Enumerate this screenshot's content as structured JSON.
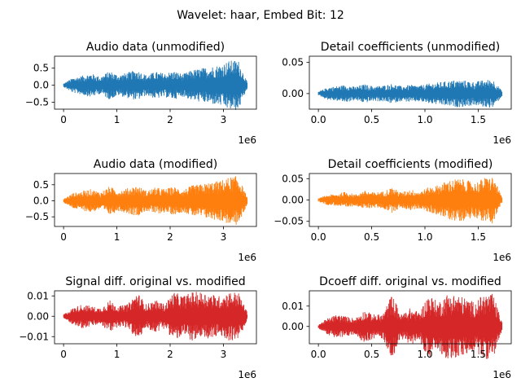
{
  "suptitle": "Wavelet: haar, Embed Bit: 12",
  "chart_data": [
    {
      "type": "line",
      "title": "Audio data (unmodified)",
      "color": "#1f77b4",
      "x_range": [
        0,
        3450000
      ],
      "xlim": [
        -170000,
        3620000
      ],
      "ylim": [
        -0.7,
        0.85
      ],
      "xticks": [
        0,
        1000000,
        2000000,
        3000000
      ],
      "xtick_labels": [
        "0",
        "1",
        "2",
        "3"
      ],
      "x_offset_label": "1e6",
      "yticks": [
        -0.5,
        0.0,
        0.5
      ],
      "ytick_labels": [
        "−0.5",
        "0.0",
        "0.5"
      ],
      "envelope": {
        "x": [
          0,
          0.05,
          0.1,
          0.15,
          0.2,
          0.25,
          0.3,
          0.35,
          0.4,
          0.45,
          0.5,
          0.55,
          0.6,
          0.65,
          0.7,
          0.75,
          0.8,
          0.85,
          0.9,
          0.95,
          1.0
        ],
        "y": [
          0.05,
          0.22,
          0.28,
          0.35,
          0.25,
          0.42,
          0.3,
          0.38,
          0.45,
          0.3,
          0.4,
          0.35,
          0.42,
          0.33,
          0.45,
          0.5,
          0.55,
          0.6,
          0.72,
          0.75,
          0.08
        ]
      }
    },
    {
      "type": "line",
      "title": "Detail coefficients (unmodified)",
      "color": "#1f77b4",
      "x_range": [
        0,
        1725000
      ],
      "xlim": [
        -85000,
        1810000
      ],
      "ylim": [
        -0.025,
        0.06
      ],
      "xticks": [
        0,
        500000,
        1000000,
        1500000
      ],
      "xtick_labels": [
        "0.0",
        "0.5",
        "1.0",
        "1.5"
      ],
      "x_offset_label": "1e6",
      "yticks": [
        0.0,
        0.05
      ],
      "ytick_labels": [
        "0.00",
        "0.05"
      ],
      "envelope": {
        "x": [
          0,
          0.05,
          0.1,
          0.15,
          0.2,
          0.25,
          0.3,
          0.35,
          0.4,
          0.45,
          0.5,
          0.55,
          0.6,
          0.65,
          0.7,
          0.75,
          0.8,
          0.85,
          0.9,
          0.95,
          1.0
        ],
        "y": [
          0.003,
          0.01,
          0.012,
          0.014,
          0.011,
          0.015,
          0.012,
          0.013,
          0.016,
          0.012,
          0.014,
          0.013,
          0.016,
          0.018,
          0.02,
          0.022,
          0.021,
          0.019,
          0.022,
          0.023,
          0.004
        ]
      }
    },
    {
      "type": "line",
      "title": "Audio data (modified)",
      "color": "#ff7f0e",
      "x_range": [
        0,
        3450000
      ],
      "xlim": [
        -170000,
        3620000
      ],
      "ylim": [
        -0.8,
        0.85
      ],
      "xticks": [
        0,
        1000000,
        2000000,
        3000000
      ],
      "xtick_labels": [
        "0",
        "1",
        "2",
        "3"
      ],
      "x_offset_label": "1e6",
      "yticks": [
        -0.5,
        0.0,
        0.5
      ],
      "ytick_labels": [
        "−0.5",
        "0.0",
        "0.5"
      ],
      "envelope": {
        "x": [
          0,
          0.05,
          0.1,
          0.15,
          0.2,
          0.25,
          0.3,
          0.35,
          0.4,
          0.45,
          0.5,
          0.55,
          0.6,
          0.65,
          0.7,
          0.75,
          0.8,
          0.85,
          0.9,
          0.95,
          1.0
        ],
        "y": [
          0.06,
          0.24,
          0.3,
          0.37,
          0.27,
          0.45,
          0.32,
          0.4,
          0.48,
          0.32,
          0.42,
          0.37,
          0.44,
          0.35,
          0.48,
          0.52,
          0.58,
          0.62,
          0.74,
          0.78,
          0.1
        ]
      }
    },
    {
      "type": "line",
      "title": "Detail coefficients (modified)",
      "color": "#ff7f0e",
      "x_range": [
        0,
        1725000
      ],
      "xlim": [
        -85000,
        1810000
      ],
      "ylim": [
        -0.062,
        0.062
      ],
      "xticks": [
        0,
        500000,
        1000000,
        1500000
      ],
      "xtick_labels": [
        "0.0",
        "0.5",
        "1.0",
        "1.5"
      ],
      "x_offset_label": "1e6",
      "yticks": [
        -0.05,
        0.0,
        0.05
      ],
      "ytick_labels": [
        "−0.05",
        "0.00",
        "0.05"
      ],
      "envelope": {
        "x": [
          0,
          0.05,
          0.1,
          0.15,
          0.2,
          0.25,
          0.3,
          0.35,
          0.4,
          0.45,
          0.5,
          0.55,
          0.6,
          0.65,
          0.7,
          0.75,
          0.8,
          0.85,
          0.9,
          0.95,
          1.0
        ],
        "y": [
          0.004,
          0.012,
          0.014,
          0.02,
          0.013,
          0.022,
          0.018,
          0.02,
          0.03,
          0.018,
          0.025,
          0.02,
          0.03,
          0.035,
          0.045,
          0.05,
          0.048,
          0.04,
          0.052,
          0.055,
          0.006
        ]
      }
    },
    {
      "type": "line",
      "title": "Signal diff. original vs. modified",
      "color": "#d62728",
      "x_range": [
        0,
        3450000
      ],
      "xlim": [
        -170000,
        3620000
      ],
      "ylim": [
        -0.0135,
        0.0125
      ],
      "xticks": [
        0,
        1000000,
        2000000,
        3000000
      ],
      "xtick_labels": [
        "0",
        "1",
        "2",
        "3"
      ],
      "x_offset_label": "1e6",
      "yticks": [
        -0.01,
        0.0,
        0.01
      ],
      "ytick_labels": [
        "−0.01",
        "0.00",
        "0.01"
      ],
      "envelope": {
        "x": [
          0,
          0.05,
          0.1,
          0.15,
          0.2,
          0.25,
          0.3,
          0.35,
          0.4,
          0.45,
          0.5,
          0.55,
          0.6,
          0.65,
          0.7,
          0.75,
          0.8,
          0.85,
          0.9,
          0.95,
          1.0
        ],
        "y": [
          0.001,
          0.004,
          0.006,
          0.005,
          0.004,
          0.008,
          0.005,
          0.006,
          0.012,
          0.006,
          0.008,
          0.006,
          0.012,
          0.01,
          0.012,
          0.012,
          0.011,
          0.01,
          0.012,
          0.012,
          0.002
        ]
      }
    },
    {
      "type": "line",
      "title": "Dcoeff diff. original vs. modified",
      "color": "#d62728",
      "x_range": [
        0,
        1725000
      ],
      "xlim": [
        -85000,
        1810000
      ],
      "ylim": [
        -0.0085,
        0.0175
      ],
      "xticks": [
        0,
        500000,
        1000000,
        1500000
      ],
      "xtick_labels": [
        "0.0",
        "0.5",
        "1.0",
        "1.5"
      ],
      "x_offset_label": "1e6",
      "yticks": [
        0.0,
        0.01
      ],
      "ytick_labels": [
        "0.00",
        "0.01"
      ],
      "envelope": {
        "x": [
          0,
          0.05,
          0.1,
          0.15,
          0.2,
          0.25,
          0.3,
          0.35,
          0.4,
          0.45,
          0.5,
          0.55,
          0.6,
          0.65,
          0.7,
          0.75,
          0.8,
          0.85,
          0.9,
          0.95,
          1.0
        ],
        "y": [
          0.001,
          0.004,
          0.006,
          0.005,
          0.004,
          0.008,
          0.006,
          0.006,
          0.016,
          0.006,
          0.009,
          0.007,
          0.016,
          0.012,
          0.016,
          0.016,
          0.014,
          0.012,
          0.016,
          0.016,
          0.002
        ]
      }
    }
  ]
}
